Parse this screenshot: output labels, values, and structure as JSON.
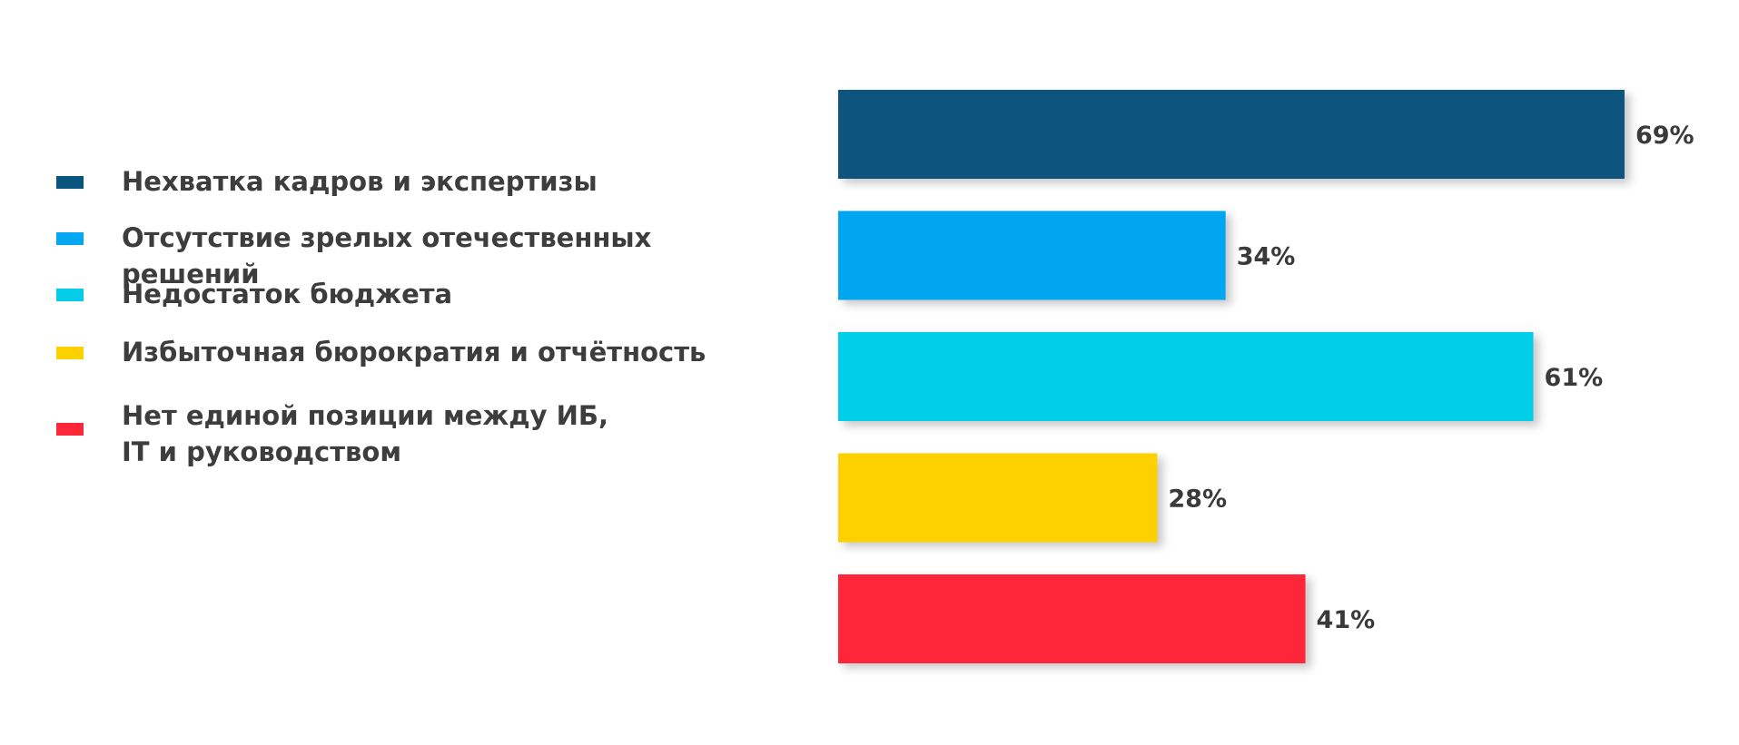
{
  "chart_data": {
    "type": "bar",
    "orientation": "horizontal",
    "title": "",
    "xlabel": "",
    "ylabel": "",
    "xlim": [
      0,
      100
    ],
    "grid": false,
    "legend_placement": "left",
    "unit": "%",
    "categories": [
      "Нехватка кадров и экспертизы",
      "Отсутствие зрелых отечественных решений",
      "Недостаток бюджета",
      "Избыточная бюрократия и отчётность",
      "Нет единой позиции между ИБ, IT и руководством"
    ],
    "values": [
      69,
      34,
      61,
      28,
      41
    ],
    "value_labels": [
      "69%",
      "34%",
      "61%",
      "28%",
      "41%"
    ],
    "colors": [
      "#08547f",
      "#04a7f0",
      "#03cde8",
      "#fdd000",
      "#fe2739"
    ]
  }
}
